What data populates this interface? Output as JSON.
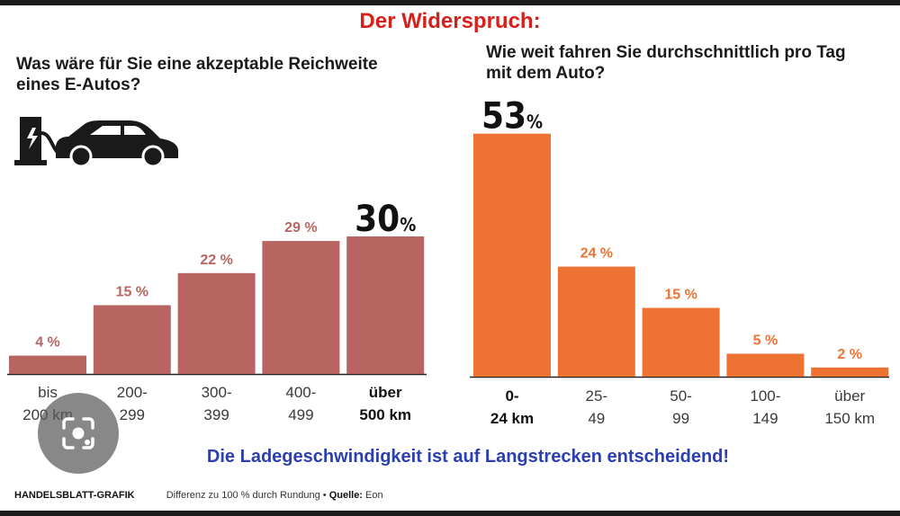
{
  "headline": "Der Widerspruch:",
  "left_question": "Was wäre für Sie eine akzeptable Reichweite eines E-Autos?",
  "right_question": "Wie weit fahren Sie durchschnittlich pro Tag mit dem Auto?",
  "footer_statement": "Die Ladegeschwindigkeit ist auf Langstrecken entscheidend!",
  "footer": {
    "brand": "HANDELSBLATT-GRAFIK",
    "note": "Differenz zu 100 % durch Rundung",
    "source_label": "Quelle:",
    "source": "Eon"
  },
  "icons": [
    "ev-charger-icon",
    "car-icon",
    "image-search-icon"
  ],
  "colors": {
    "left_bars": "#b86561",
    "right_bars": "#ee7231",
    "headline": "#d6201b",
    "statement": "#2b3fb0"
  },
  "chart_data": [
    {
      "type": "bar",
      "title": "Was wäre für Sie eine akzeptable Reichweite eines E-Autos?",
      "categories": [
        [
          "bis",
          "200 km"
        ],
        [
          "200-",
          "299"
        ],
        [
          "300-",
          "399"
        ],
        [
          "400-",
          "499"
        ],
        [
          "über",
          "500 km"
        ]
      ],
      "values": [
        4,
        15,
        22,
        29,
        30
      ],
      "labels": [
        "4 %",
        "15 %",
        "22 %",
        "29 %",
        "30%"
      ],
      "highlight_index": 4,
      "unit": "%",
      "ylim": [
        0,
        60
      ],
      "grid": false
    },
    {
      "type": "bar",
      "title": "Wie weit fahren Sie durchschnittlich pro Tag mit dem Auto?",
      "categories": [
        [
          "0-",
          "24 km"
        ],
        [
          "25-",
          "49"
        ],
        [
          "50-",
          "99"
        ],
        [
          "100-",
          "149"
        ],
        [
          "über",
          "150 km"
        ]
      ],
      "values": [
        53,
        24,
        15,
        5,
        2
      ],
      "labels": [
        "53%",
        "24 %",
        "15 %",
        "5 %",
        "2 %"
      ],
      "highlight_index": 0,
      "unit": "%",
      "ylim": [
        0,
        60
      ],
      "grid": false
    }
  ]
}
